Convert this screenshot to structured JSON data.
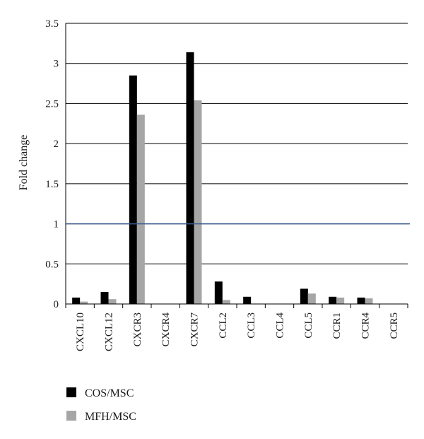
{
  "chart_data": {
    "type": "bar",
    "ylabel": "Fold change",
    "ylim": [
      0,
      3.5
    ],
    "yticks": [
      "0",
      "0.5",
      "1",
      "1.5",
      "2",
      "2.5",
      "3",
      "3.5"
    ],
    "grid": true,
    "reference_line": {
      "y": 1,
      "color": "#3a5a8c"
    },
    "categories": [
      "CXCL10",
      "CXCL12",
      "CXCR3",
      "CXCR4",
      "CXCR7",
      "CCL2",
      "CCL3",
      "CCL4",
      "CCL5",
      "CCR1",
      "CCR4",
      "CCR5"
    ],
    "series": [
      {
        "name": "COS/MSC",
        "color": "#000000",
        "values": [
          0.08,
          0.15,
          2.85,
          0.0,
          3.14,
          0.28,
          0.09,
          0.0,
          0.19,
          0.09,
          0.08,
          0.0
        ]
      },
      {
        "name": "MFH/MSC",
        "color": "#a6a6a6",
        "values": [
          0.03,
          0.06,
          2.36,
          0.0,
          2.54,
          0.05,
          0.0,
          0.0,
          0.13,
          0.08,
          0.07,
          0.0
        ]
      }
    ],
    "legend_position": "bottom-left"
  }
}
